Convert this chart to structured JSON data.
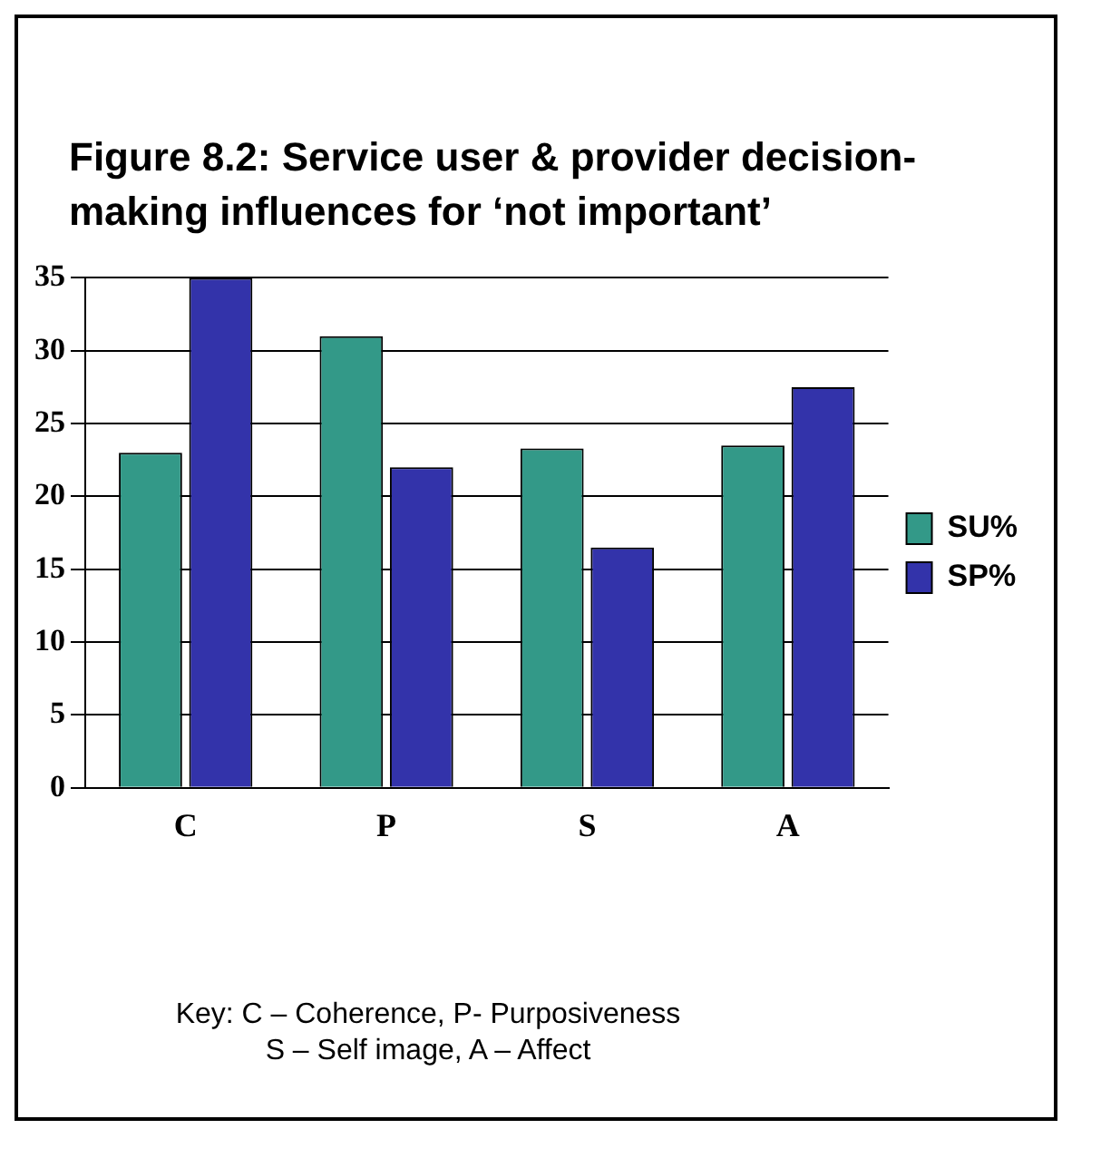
{
  "chart_data": {
    "type": "bar",
    "title": "Figure 8.2: Service user & provider decision-making influences for  ‘not important’",
    "categories": [
      "C",
      "P",
      "S",
      "A"
    ],
    "series": [
      {
        "name": "SU%",
        "color": "#339988",
        "values": [
          23,
          31,
          23.3,
          23.5
        ]
      },
      {
        "name": "SP%",
        "color": "#3333aa",
        "values": [
          35,
          22,
          16.5,
          27.5
        ]
      }
    ],
    "ylim": [
      0,
      35
    ],
    "yticks": [
      0,
      5,
      10,
      15,
      20,
      25,
      30,
      35
    ],
    "grid": "y",
    "legend": "right",
    "annotations": [
      "Key: C – Coherence, P- Purposiveness",
      "S – Self image, A – Affect"
    ]
  }
}
